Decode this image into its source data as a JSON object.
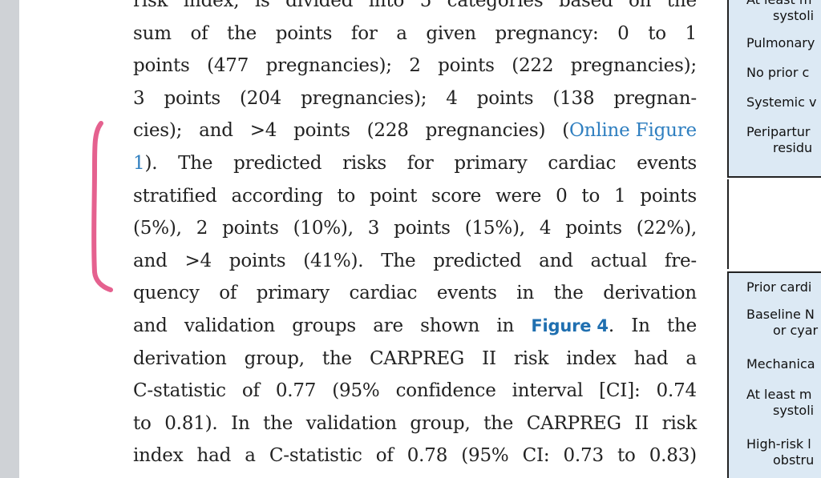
{
  "body": {
    "lines": [
      [
        "risk",
        "index,",
        "is",
        "divided",
        "into",
        "5",
        "categories",
        "based",
        "on",
        "the"
      ],
      [
        "sum",
        "of",
        "the",
        "points",
        "for",
        "a",
        "given",
        "pregnancy:",
        "0",
        "to",
        "1"
      ],
      [
        "points",
        "(477",
        "pregnancies);",
        "2",
        "points",
        "(222",
        "pregnancies);"
      ],
      [
        "3",
        "points",
        "(204",
        "pregnancies);",
        "4",
        "points",
        "(138",
        "pregnan-"
      ],
      [
        "cies);",
        "and",
        ">4",
        "points",
        "(228",
        "pregnancies)",
        "(Online Figure"
      ],
      [
        "1).",
        "The",
        "predicted",
        "risks",
        "for",
        "primary",
        "cardiac",
        "events"
      ],
      [
        "stratified",
        "according",
        "to",
        "point",
        "score",
        "were",
        "0",
        "to",
        "1",
        "points"
      ],
      [
        "(5%),",
        "2",
        "points",
        "(10%),",
        "3",
        "points",
        "(15%),",
        "4",
        "points",
        "(22%),"
      ],
      [
        "and",
        ">4",
        "points",
        "(41%).",
        "The",
        "predicted",
        "and",
        "actual",
        "fre-"
      ],
      [
        "quency",
        "of",
        "primary",
        "cardiac",
        "events",
        "in",
        "the",
        "derivation"
      ],
      [
        "and",
        "validation",
        "groups",
        "are",
        "shown",
        "in",
        "Figure 4.",
        "In",
        "the"
      ],
      [
        "derivation",
        "group,",
        "the",
        "CARPREG",
        "II",
        "risk",
        "index",
        "had",
        "a"
      ],
      [
        "C-statistic",
        "of",
        "0.77",
        "(95%",
        "confidence",
        "interval",
        "[CI]:",
        "0.74"
      ],
      [
        "to",
        "0.81).",
        "In",
        "the",
        "validation",
        "group,",
        "the",
        "CARPREG",
        "II",
        "risk"
      ],
      [
        "index",
        "had",
        "a",
        "C-statistic",
        "of",
        "0.78",
        "(95%",
        "CI:",
        "0.73",
        "to",
        "0.83)"
      ]
    ],
    "online_figure_link_part1": "(Online Figure",
    "online_figure_link_part2": "1)",
    "figure4_link": "Figure 4"
  },
  "sidebar": {
    "top_rows": [
      {
        "text": "At least m",
        "indent": false
      },
      {
        "text": "systoli",
        "indent": true
      },
      {
        "text": "Pulmonary",
        "indent": false
      },
      {
        "text": "No prior c",
        "indent": false
      },
      {
        "text": "Systemic v",
        "indent": false
      },
      {
        "text": "Peripartur",
        "indent": false
      },
      {
        "text": "residu",
        "indent": true
      }
    ],
    "bottom_rows": [
      {
        "text": "Prior cardi",
        "indent": false
      },
      {
        "text": "Baseline N",
        "indent": false
      },
      {
        "text": "or cyar",
        "indent": true
      },
      {
        "text": "Mechanica",
        "indent": false
      },
      {
        "text": "At least m",
        "indent": false
      },
      {
        "text": "systoli",
        "indent": true
      },
      {
        "text": "High-risk l",
        "indent": false
      },
      {
        "text": "obstru",
        "indent": true
      }
    ]
  },
  "colors": {
    "link": "#2f7fc0",
    "annotation": "#e0457b",
    "panel": "#dce9f4"
  }
}
